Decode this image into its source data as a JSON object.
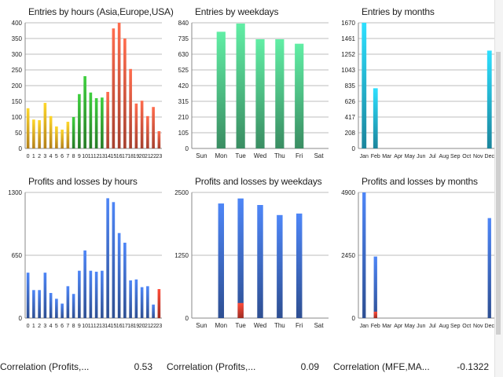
{
  "colors": {
    "grid": "#bdbdbd",
    "asia": "#e0a020",
    "europe": "#2f9a2f",
    "usa": "#d0503a",
    "weekday": "#48b07a",
    "month": "#22a6c3",
    "profit": "#3a63b7",
    "loss": "#c8382a"
  },
  "chart_data": [
    {
      "id": "entries-hours",
      "type": "bar",
      "title": "Entries by hours (Asia,Europe,USA)",
      "categories": [
        "0",
        "1",
        "2",
        "3",
        "4",
        "5",
        "6",
        "7",
        "8",
        "9",
        "10",
        "11",
        "12",
        "13",
        "14",
        "15",
        "16",
        "17",
        "18",
        "19",
        "20",
        "21",
        "22",
        "23"
      ],
      "values": [
        128,
        92,
        90,
        145,
        103,
        70,
        60,
        85,
        100,
        173,
        230,
        178,
        160,
        162,
        180,
        382,
        400,
        350,
        253,
        143,
        152,
        103,
        132,
        55
      ],
      "ylim": [
        0,
        400
      ],
      "yticks": [
        "0",
        "50",
        "100",
        "150",
        "200",
        "250",
        "300",
        "350",
        "400"
      ],
      "grid": true
    },
    {
      "id": "entries-weekdays",
      "type": "bar",
      "title": "Entries by weekdays",
      "categories": [
        "Sun",
        "Mon",
        "Tue",
        "Wed",
        "Thu",
        "Fri",
        "Sat"
      ],
      "values": [
        0,
        780,
        835,
        730,
        730,
        700,
        0
      ],
      "ylim": [
        0,
        840
      ],
      "yticks": [
        "0",
        "105",
        "210",
        "315",
        "420",
        "525",
        "630",
        "735",
        "840"
      ],
      "grid": true
    },
    {
      "id": "entries-months",
      "type": "bar",
      "title": "Entries by months",
      "categories": [
        "Jan",
        "Feb",
        "Mar",
        "Apr",
        "May",
        "Jun",
        "Jul",
        "Aug",
        "Sep",
        "Oct",
        "Nov",
        "Dec"
      ],
      "values": [
        1670,
        800,
        0,
        0,
        0,
        0,
        0,
        0,
        0,
        0,
        0,
        1300
      ],
      "ylim": [
        0,
        1670
      ],
      "yticks": [
        "0",
        "208",
        "417",
        "626",
        "835",
        "1043",
        "1252",
        "1461",
        "1670"
      ],
      "grid": true
    },
    {
      "id": "pl-hours",
      "type": "bar",
      "title": "Profits and losses by hours",
      "categories": [
        "0",
        "1",
        "2",
        "3",
        "4",
        "5",
        "6",
        "7",
        "8",
        "9",
        "10",
        "11",
        "12",
        "13",
        "14",
        "15",
        "16",
        "17",
        "18",
        "19",
        "20",
        "21",
        "22",
        "23"
      ],
      "series": [
        {
          "values": [
            470,
            290,
            290,
            470,
            260,
            200,
            150,
            330,
            250,
            490,
            700,
            490,
            480,
            490,
            1240,
            1200,
            880,
            780,
            390,
            400,
            320,
            330,
            140,
            0
          ]
        },
        {
          "values": [
            0,
            0,
            0,
            0,
            0,
            0,
            0,
            0,
            0,
            0,
            0,
            0,
            0,
            0,
            0,
            0,
            0,
            0,
            0,
            0,
            0,
            0,
            0,
            300
          ]
        }
      ],
      "ylim": [
        0,
        1300
      ],
      "yticks": [
        "0",
        "650",
        "1300"
      ],
      "grid": true
    },
    {
      "id": "pl-weekdays",
      "type": "bar",
      "title": "Profits and losses by weekdays",
      "categories": [
        "Sun",
        "Mon",
        "Tue",
        "Wed",
        "Thu",
        "Fri",
        "Sat"
      ],
      "series": [
        {
          "values": [
            0,
            2280,
            2380,
            2250,
            2050,
            2080,
            0
          ]
        },
        {
          "values": [
            0,
            0,
            300,
            0,
            0,
            0,
            0
          ]
        }
      ],
      "ylim": [
        0,
        2500
      ],
      "yticks": [
        "0",
        "1250",
        "2500"
      ],
      "grid": true
    },
    {
      "id": "pl-months",
      "type": "bar",
      "title": "Profits and losses by months",
      "categories": [
        "Jan",
        "Feb",
        "Mar",
        "Apr",
        "May",
        "Jun",
        "Jul",
        "Aug",
        "Sep",
        "Oct",
        "Nov",
        "Dec"
      ],
      "series": [
        {
          "values": [
            4900,
            2400,
            0,
            0,
            0,
            0,
            0,
            0,
            0,
            0,
            0,
            3900
          ]
        },
        {
          "values": [
            0,
            250,
            0,
            0,
            0,
            0,
            0,
            0,
            0,
            0,
            0,
            0
          ]
        }
      ],
      "ylim": [
        0,
        4900
      ],
      "yticks": [
        "0",
        "2450",
        "4900"
      ],
      "grid": true
    }
  ],
  "stats": [
    {
      "label": "Correlation (Profits,...",
      "value": "0.53"
    },
    {
      "label": "Correlation (Profits,...",
      "value": "0.09"
    },
    {
      "label": "Correlation (MFE,MA...",
      "value": "-0.1322"
    }
  ]
}
